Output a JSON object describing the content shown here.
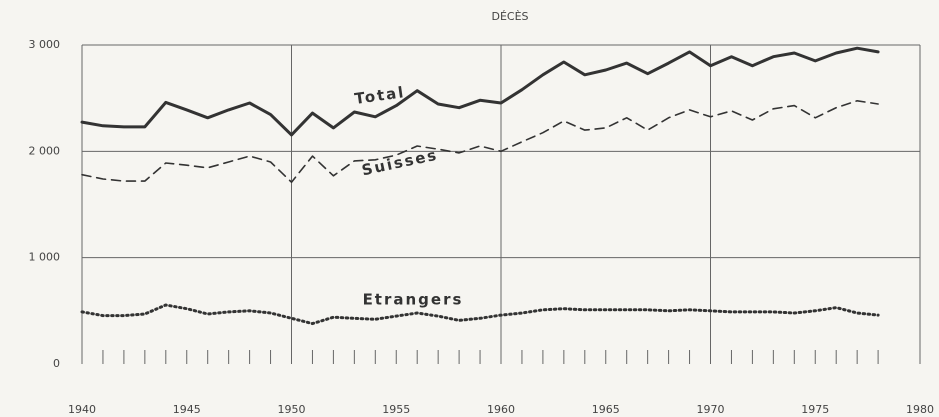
{
  "chart_data": {
    "type": "line",
    "title": "DÉCÈS",
    "x": [
      1940,
      1941,
      1942,
      1943,
      1944,
      1945,
      1946,
      1947,
      1948,
      1949,
      1950,
      1951,
      1952,
      1953,
      1954,
      1955,
      1956,
      1957,
      1958,
      1959,
      1960,
      1961,
      1962,
      1963,
      1964,
      1965,
      1966,
      1967,
      1968,
      1969,
      1970,
      1971,
      1972,
      1973,
      1974,
      1975,
      1976,
      1977,
      1978
    ],
    "series": [
      {
        "name": "Total",
        "color": "#333333",
        "values": [
          2275,
          2240,
          2230,
          2230,
          2460,
          2390,
          2315,
          2390,
          2455,
          2345,
          2155,
          2360,
          2220,
          2370,
          2325,
          2430,
          2570,
          2445,
          2410,
          2480,
          2455,
          2580,
          2720,
          2840,
          2720,
          2765,
          2830,
          2730,
          2830,
          2935,
          2805,
          2890,
          2805,
          2890,
          2925,
          2850,
          2925,
          2970,
          2935
        ]
      },
      {
        "name": "Suisses",
        "color": "#333333",
        "values": [
          1780,
          1740,
          1720,
          1720,
          1890,
          1870,
          1845,
          1900,
          1955,
          1900,
          1710,
          1955,
          1770,
          1910,
          1920,
          1965,
          2050,
          2020,
          1985,
          2050,
          2000,
          2090,
          2175,
          2285,
          2200,
          2220,
          2315,
          2200,
          2315,
          2390,
          2325,
          2380,
          2295,
          2400,
          2430,
          2315,
          2410,
          2475,
          2445
        ]
      },
      {
        "name": "Etrangers",
        "color": "#333333",
        "values": [
          490,
          455,
          455,
          470,
          555,
          520,
          470,
          490,
          500,
          480,
          430,
          380,
          440,
          430,
          420,
          450,
          480,
          450,
          410,
          430,
          460,
          480,
          510,
          520,
          510,
          510,
          510,
          510,
          500,
          510,
          500,
          490,
          490,
          490,
          480,
          500,
          530,
          480,
          460
        ]
      }
    ],
    "xlim": [
      1940,
      1980
    ],
    "xticks": [
      1940,
      1945,
      1950,
      1955,
      1960,
      1965,
      1970,
      1975,
      1980
    ],
    "ylim": [
      0,
      3000
    ],
    "yticks": [
      {
        "value": 0,
        "label": "0"
      },
      {
        "value": 1000,
        "label": "1 000"
      },
      {
        "value": 2000,
        "label": "2 000"
      },
      {
        "value": 3000,
        "label": "3 000"
      }
    ],
    "grid": true
  }
}
